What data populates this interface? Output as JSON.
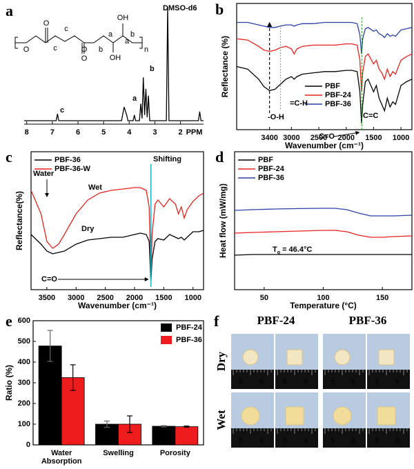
{
  "panels": [
    "a",
    "b",
    "c",
    "d",
    "e",
    "f"
  ],
  "chart_data": [
    {
      "type": "line",
      "color": "#000000",
      "x": [
        8.1,
        7.0,
        6.85,
        6.8,
        6.75,
        4.3,
        4.2,
        4.1,
        4.05,
        3.85,
        3.8,
        3.75,
        3.6,
        3.55,
        3.5,
        3.45,
        3.4,
        3.35,
        3.3,
        3.25,
        3.2,
        2.55,
        2.5,
        2.45,
        1.3,
        1.25,
        1.2,
        1.1
      ],
      "values": [
        0,
        0,
        0,
        6,
        0,
        0,
        12,
        5,
        0,
        0,
        5,
        0,
        0,
        15,
        2,
        38,
        5,
        28,
        3,
        22,
        0,
        0,
        100,
        0,
        0,
        8,
        0,
        0
      ],
      "xlim": [
        8.1,
        1.1
      ],
      "xticks": [
        8,
        7,
        6,
        5,
        4,
        3,
        2
      ],
      "xlabel": "PPM",
      "ylim": [
        0,
        100
      ],
      "annotations": [
        "c",
        "a",
        "b",
        "DMSO-d6"
      ],
      "structure_labels": [
        "O",
        "O",
        "c",
        "c",
        "O",
        "O",
        "OH",
        "OH",
        "b",
        "a",
        "a",
        "b",
        "n"
      ]
    },
    {
      "type": "line",
      "x": [
        4000,
        3800,
        3600,
        3500,
        3400,
        3300,
        3200,
        3100,
        3000,
        2950,
        2900,
        2800,
        2600,
        2400,
        2200,
        2000,
        1900,
        1800,
        1750,
        1720,
        1700,
        1650,
        1600,
        1500,
        1450,
        1400,
        1350,
        1300,
        1250,
        1200,
        1150,
        1100,
        1000,
        900,
        800
      ],
      "series": [
        {
          "name": "PBF",
          "color": "#000000",
          "values": [
            50,
            48,
            40,
            34,
            31,
            32,
            36,
            40,
            42,
            40,
            42,
            44,
            45,
            46,
            46,
            47,
            47,
            46,
            30,
            5,
            20,
            38,
            40,
            30,
            35,
            25,
            20,
            15,
            25,
            18,
            22,
            20,
            35,
            38,
            40
          ]
        },
        {
          "name": "PBF-24",
          "color": "#e8211c",
          "values": [
            72,
            71,
            66,
            63,
            62,
            63,
            65,
            66,
            64,
            60,
            64,
            66,
            67,
            67,
            67,
            68,
            68,
            67,
            55,
            30,
            45,
            58,
            60,
            52,
            55,
            48,
            45,
            40,
            48,
            42,
            46,
            44,
            55,
            58,
            60
          ]
        },
        {
          "name": "PBF-36",
          "color": "#2b3fa8",
          "values": [
            85,
            85,
            83,
            82,
            81,
            81,
            82,
            83,
            83,
            82,
            83,
            84,
            84,
            85,
            85,
            85,
            85,
            84,
            75,
            60,
            72,
            80,
            81,
            78,
            79,
            76,
            75,
            73,
            76,
            74,
            75,
            74,
            79,
            80,
            81
          ]
        }
      ],
      "xlim": [
        4000,
        800
      ],
      "xticks": [
        3400,
        3000,
        2500,
        2000,
        1500,
        1000
      ],
      "ylim": [
        0,
        100
      ],
      "xlabel": "Wavenumber (cm⁻¹)",
      "ylabel": "Reflectance (%)",
      "legend": "lower right",
      "annotations": [
        "-O-H",
        "=C-H",
        "C=C",
        "C=O"
      ]
    },
    {
      "type": "line",
      "x": [
        3770,
        3600,
        3500,
        3400,
        3300,
        3200,
        3000,
        2800,
        2600,
        2400,
        2200,
        2000,
        1900,
        1800,
        1750,
        1720,
        1700,
        1650,
        1600,
        1500,
        1400,
        1300,
        1250,
        1200,
        1150,
        1100,
        1000,
        900,
        820
      ],
      "series": [
        {
          "name": "PBF-36",
          "color": "#000000",
          "values": [
            40,
            33,
            28,
            26,
            27,
            28,
            33,
            36,
            37,
            38,
            38,
            40,
            41,
            40,
            35,
            5,
            22,
            35,
            37,
            36,
            40,
            38,
            37,
            38,
            36,
            38,
            42,
            42,
            43
          ]
        },
        {
          "name": "PBF-36-W",
          "color": "#e8211c",
          "values": [
            72,
            55,
            35,
            30,
            33,
            40,
            55,
            65,
            70,
            72,
            73,
            74,
            74,
            72,
            60,
            8,
            40,
            62,
            65,
            60,
            66,
            62,
            55,
            60,
            52,
            58,
            64,
            68,
            70
          ]
        }
      ],
      "xlim": [
        3770,
        820
      ],
      "xticks": [
        3500,
        3000,
        2500,
        2000,
        1500,
        1000
      ],
      "ylim": [
        0,
        100
      ],
      "xlabel": "Wavenumber (cm⁻¹)",
      "ylabel": "Reflectance(%)",
      "legend": "upper left",
      "annotations": [
        "Water",
        "Wet",
        "Dry",
        "Shifting",
        "C=O"
      ]
    },
    {
      "type": "line",
      "x": [
        25,
        40,
        60,
        80,
        100,
        110,
        120,
        130,
        140,
        150,
        160,
        175
      ],
      "series": [
        {
          "name": "PBF",
          "color": "#000000",
          "values": [
            25,
            25.5,
            25.5,
            25.5,
            25.5,
            25.5,
            25.5,
            25.5,
            25.5,
            25.5,
            25.5,
            25.5
          ]
        },
        {
          "name": "PBF-24",
          "color": "#e8211c",
          "values": [
            41,
            41.5,
            42,
            42.5,
            43,
            43,
            42,
            39.5,
            38,
            38,
            38.5,
            39
          ]
        },
        {
          "name": "PBF-36",
          "color": "#2b3fa8",
          "values": [
            57.5,
            58,
            58.5,
            58.8,
            59,
            59,
            58,
            55.5,
            53.5,
            53.5,
            53.5,
            54
          ]
        }
      ],
      "xlim": [
        25,
        175
      ],
      "xticks": [
        50,
        100,
        150
      ],
      "ylim": [
        0,
        100
      ],
      "xlabel": "Temperature (°C)",
      "ylabel": "Heat flow (mW/mg)",
      "legend": "upper left",
      "tg_annotation": {
        "symbol": "T",
        "subscript": "g",
        "text": " = 46.4°C"
      }
    },
    {
      "type": "bar",
      "categories": [
        "Water\nAbsorption",
        "Swelling",
        "Porosity"
      ],
      "series": [
        {
          "name": "PBF-24",
          "color": "#000000",
          "values": [
            478,
            100,
            90
          ],
          "errors": [
            75,
            15,
            3
          ]
        },
        {
          "name": "PBF-36",
          "color": "#ee1c1c",
          "values": [
            325,
            100,
            88
          ],
          "errors": [
            62,
            40,
            3
          ]
        }
      ],
      "ylim": [
        0,
        600
      ],
      "yticks": [
        0,
        100,
        200,
        300,
        400,
        500,
        600
      ],
      "ylabel": "Ratio (%)",
      "legend": "upper right"
    }
  ],
  "photos": {
    "columns": [
      "PBF-24",
      "PBF-36"
    ],
    "rows": [
      "Dry",
      "Wet"
    ],
    "ruler_labels": [
      "5",
      "6"
    ]
  }
}
